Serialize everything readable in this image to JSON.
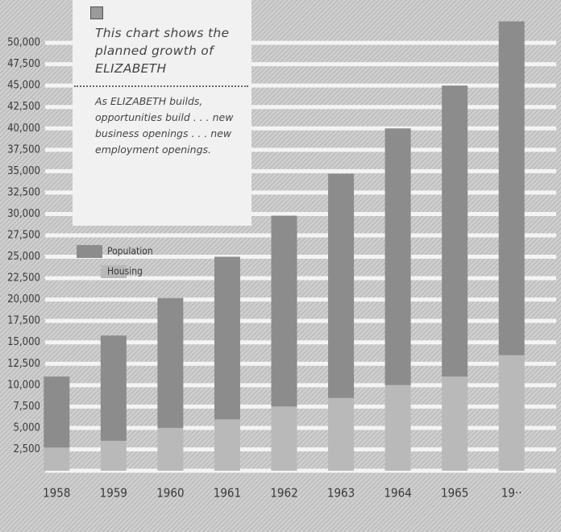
{
  "chart_data": {
    "type": "bar",
    "stacked": true,
    "title": "This chart shows the planned growth of ELIZABETH",
    "annotation": "As ELIZABETH builds, opportunities build . . . new business openings . . . new employment openings.",
    "categories": [
      "1958",
      "1959",
      "1960",
      "1961",
      "1962",
      "1963",
      "1964",
      "1965",
      "19··"
    ],
    "series": [
      {
        "name": "Population",
        "color": "#8c8c8c",
        "values": [
          8300,
          12300,
          15200,
          19000,
          22300,
          26200,
          30000,
          34000,
          39000
        ]
      },
      {
        "name": "Housing",
        "color": "#b9b9b9",
        "values": [
          2700,
          3500,
          5000,
          6000,
          7500,
          8500,
          10000,
          11000,
          13500
        ]
      }
    ],
    "ylim": [
      0,
      55000
    ],
    "yticks": [
      {
        "value": 2500,
        "label": "2,500"
      },
      {
        "value": 5000,
        "label": "5,000"
      },
      {
        "value": 7500,
        "label": "7,500"
      },
      {
        "value": 10000,
        "label": "10,000"
      },
      {
        "value": 12500,
        "label": "12,500"
      },
      {
        "value": 15000,
        "label": "15,000"
      },
      {
        "value": 17500,
        "label": "17,500"
      },
      {
        "value": 20000,
        "label": "20,000"
      },
      {
        "value": 22500,
        "label": "22,500"
      },
      {
        "value": 25000,
        "label": "25,000"
      },
      {
        "value": 27500,
        "label": "27,500"
      },
      {
        "value": 30000,
        "label": "30,000"
      },
      {
        "value": 32500,
        "label": "32,500"
      },
      {
        "value": 35000,
        "label": "35,000"
      },
      {
        "value": 37500,
        "label": "37,500"
      },
      {
        "value": 40000,
        "label": "40,000"
      },
      {
        "value": 42500,
        "label": "42,500"
      },
      {
        "value": 45000,
        "label": "45,000"
      },
      {
        "value": 47500,
        "label": "47,500"
      },
      {
        "value": 50000,
        "label": "50,000"
      }
    ],
    "grid": true
  }
}
